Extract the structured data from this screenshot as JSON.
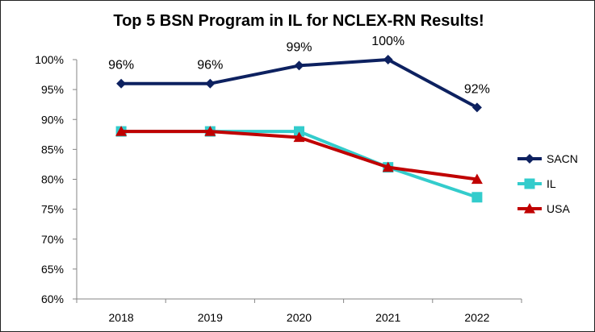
{
  "chart_data": {
    "type": "line",
    "title": "Top 5 BSN Program in IL for NCLEX-RN Results!",
    "xlabel": "",
    "ylabel": "",
    "categories": [
      "2018",
      "2019",
      "2020",
      "2021",
      "2022"
    ],
    "ylim": [
      60,
      100
    ],
    "yticks": [
      "60%",
      "65%",
      "70%",
      "75%",
      "80%",
      "85%",
      "90%",
      "95%",
      "100%"
    ],
    "grid": false,
    "legend_position": "right",
    "series": [
      {
        "name": "SACN",
        "values": [
          96,
          96,
          99,
          100,
          92
        ],
        "data_labels": [
          "96%",
          "96%",
          "99%",
          "100%",
          "92%"
        ],
        "color": "#0d2160",
        "marker": "diamond"
      },
      {
        "name": "IL",
        "values": [
          88,
          88,
          88,
          82,
          77
        ],
        "color": "#33cccc",
        "marker": "square"
      },
      {
        "name": "USA",
        "values": [
          88,
          88,
          87,
          82,
          80
        ],
        "color": "#c00000",
        "marker": "triangle"
      }
    ]
  }
}
